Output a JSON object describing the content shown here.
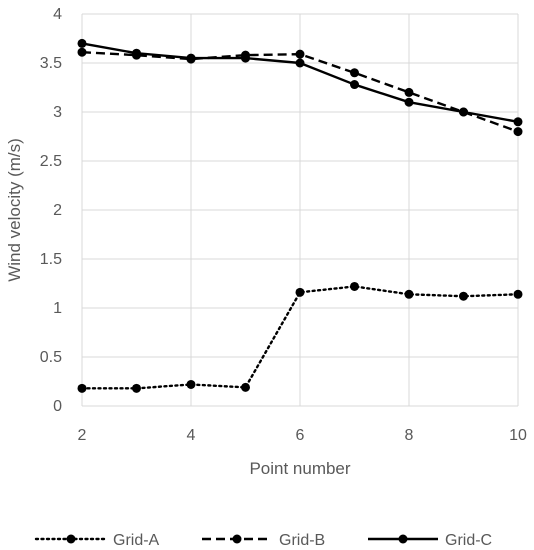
{
  "chart_data": {
    "type": "line",
    "title": "",
    "xlabel": "Point number",
    "ylabel": "Wind velocity (m/s)",
    "xlim": [
      2,
      10
    ],
    "ylim": [
      0,
      4
    ],
    "x": [
      2,
      3,
      4,
      5,
      6,
      7,
      8,
      9,
      10
    ],
    "x_ticks": [
      "2",
      "4",
      "6",
      "8",
      "10"
    ],
    "y_ticks": [
      "0",
      "0.5",
      "1",
      "1.5",
      "2",
      "2.5",
      "3",
      "3.5",
      "4"
    ],
    "grid": true,
    "legend_position": "bottom",
    "series": [
      {
        "name": "Grid-A",
        "line_style": "dotted",
        "values": [
          0.18,
          0.18,
          0.22,
          0.19,
          1.16,
          1.22,
          1.14,
          1.12,
          1.14
        ]
      },
      {
        "name": "Grid-B",
        "line_style": "dashed",
        "values": [
          3.61,
          3.58,
          3.54,
          3.58,
          3.59,
          3.4,
          3.2,
          3.0,
          2.8
        ]
      },
      {
        "name": "Grid-C",
        "line_style": "solid",
        "values": [
          3.7,
          3.6,
          3.55,
          3.55,
          3.5,
          3.28,
          3.1,
          3.0,
          2.9
        ]
      }
    ],
    "colors": {
      "line": "#000000",
      "grid": "#d9d9d9",
      "text": "#595959"
    }
  }
}
